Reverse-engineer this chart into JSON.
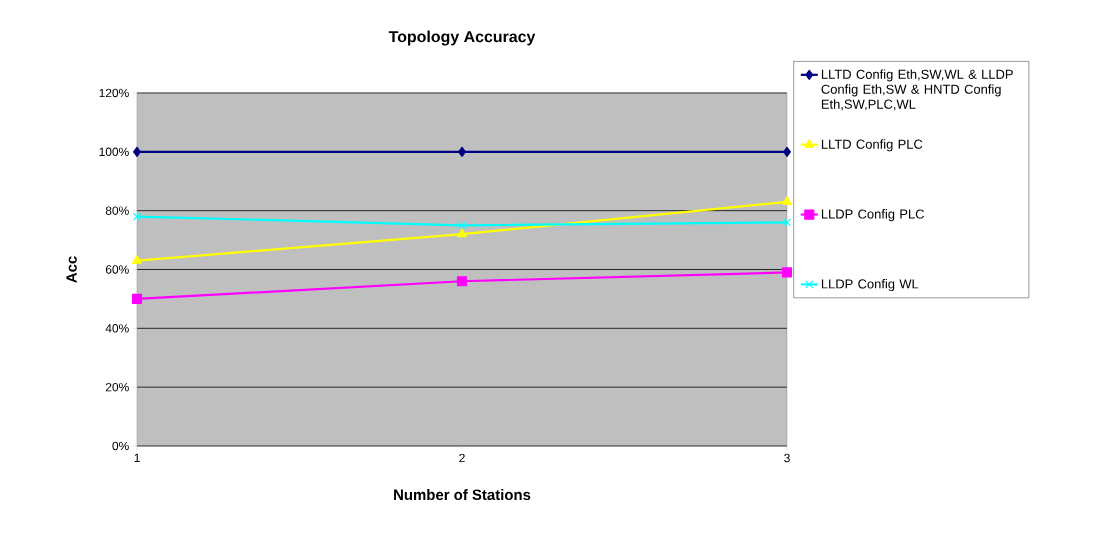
{
  "chart_data": {
    "type": "line",
    "title": "Topology Accuracy",
    "xlabel": "Number of Stations",
    "ylabel": "Acc",
    "x": [
      1,
      2,
      3
    ],
    "xlim": [
      1,
      3
    ],
    "xticks": [
      1,
      2,
      3
    ],
    "ylim": [
      0,
      120
    ],
    "yticks": [
      {
        "value": 0,
        "label": "0%"
      },
      {
        "value": 20,
        "label": "20%"
      },
      {
        "value": 40,
        "label": "40%"
      },
      {
        "value": 60,
        "label": "60%"
      },
      {
        "value": 80,
        "label": "80%"
      },
      {
        "value": 100,
        "label": "100%"
      },
      {
        "value": 120,
        "label": "120%"
      }
    ],
    "grid": "y",
    "legend": "right",
    "series": [
      {
        "name": "LLTD Config Eth,SW,WL & LLDP Config Eth,SW & HNTD Config Eth,SW,PLC,WL",
        "color": "#000080",
        "marker": "diamond",
        "values": [
          100,
          100,
          100
        ]
      },
      {
        "name": "LLTD Config PLC",
        "color": "#ffff00",
        "marker": "triangle",
        "values": [
          63,
          72,
          83
        ]
      },
      {
        "name": "LLDP Config PLC",
        "color": "#ff00ff",
        "marker": "square",
        "values": [
          50,
          56,
          59
        ]
      },
      {
        "name": "LLDP Config WL",
        "color": "#00ffff",
        "marker": "cross",
        "values": [
          78,
          75,
          76
        ]
      }
    ]
  }
}
